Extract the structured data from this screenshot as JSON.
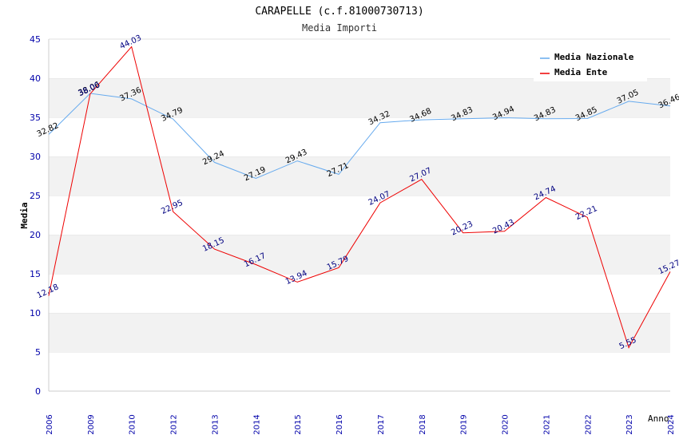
{
  "chart_data": {
    "type": "line",
    "title": "CARAPELLE (c.f.81000730713)",
    "subtitle": "Media Importi",
    "xlabel": "Anno",
    "ylabel": "Media",
    "ylim": [
      0,
      45
    ],
    "yticks": [
      0,
      5,
      10,
      15,
      20,
      25,
      30,
      35,
      40,
      45
    ],
    "categories": [
      "2006",
      "2009",
      "2010",
      "2012",
      "2013",
      "2014",
      "2015",
      "2016",
      "2017",
      "2018",
      "2019",
      "2020",
      "2021",
      "2022",
      "2023",
      "2024"
    ],
    "series": [
      {
        "name": "Media Nazionale",
        "color": "#66aaee",
        "values": [
          32.82,
          38.06,
          37.36,
          34.79,
          29.24,
          27.19,
          29.43,
          27.71,
          34.32,
          34.68,
          34.83,
          34.94,
          34.83,
          34.85,
          37.05,
          36.46
        ],
        "labels": [
          "32.82",
          "38.06",
          "37.36",
          "34.79",
          "29.24",
          "27.19",
          "29.43",
          "27.71",
          "34.32",
          "34.68",
          "34.83",
          "34.94",
          "34.83",
          "34.85",
          "37.05",
          "36.46"
        ]
      },
      {
        "name": "Media Ente",
        "color": "#ee0000",
        "values": [
          12.18,
          38.0,
          44.03,
          22.95,
          18.15,
          16.17,
          13.94,
          15.79,
          24.07,
          27.07,
          20.23,
          20.43,
          24.74,
          22.21,
          5.55,
          15.27
        ],
        "labels": [
          "12.18",
          "38.00",
          "44.03",
          "22.95",
          "18.15",
          "16.17",
          "13.94",
          "15.79",
          "24.07",
          "27.07",
          "20.23",
          "20.43",
          "24.74",
          "22.21",
          "5.55",
          "15.27"
        ]
      }
    ],
    "legend_position": "top-right",
    "grid": true
  }
}
